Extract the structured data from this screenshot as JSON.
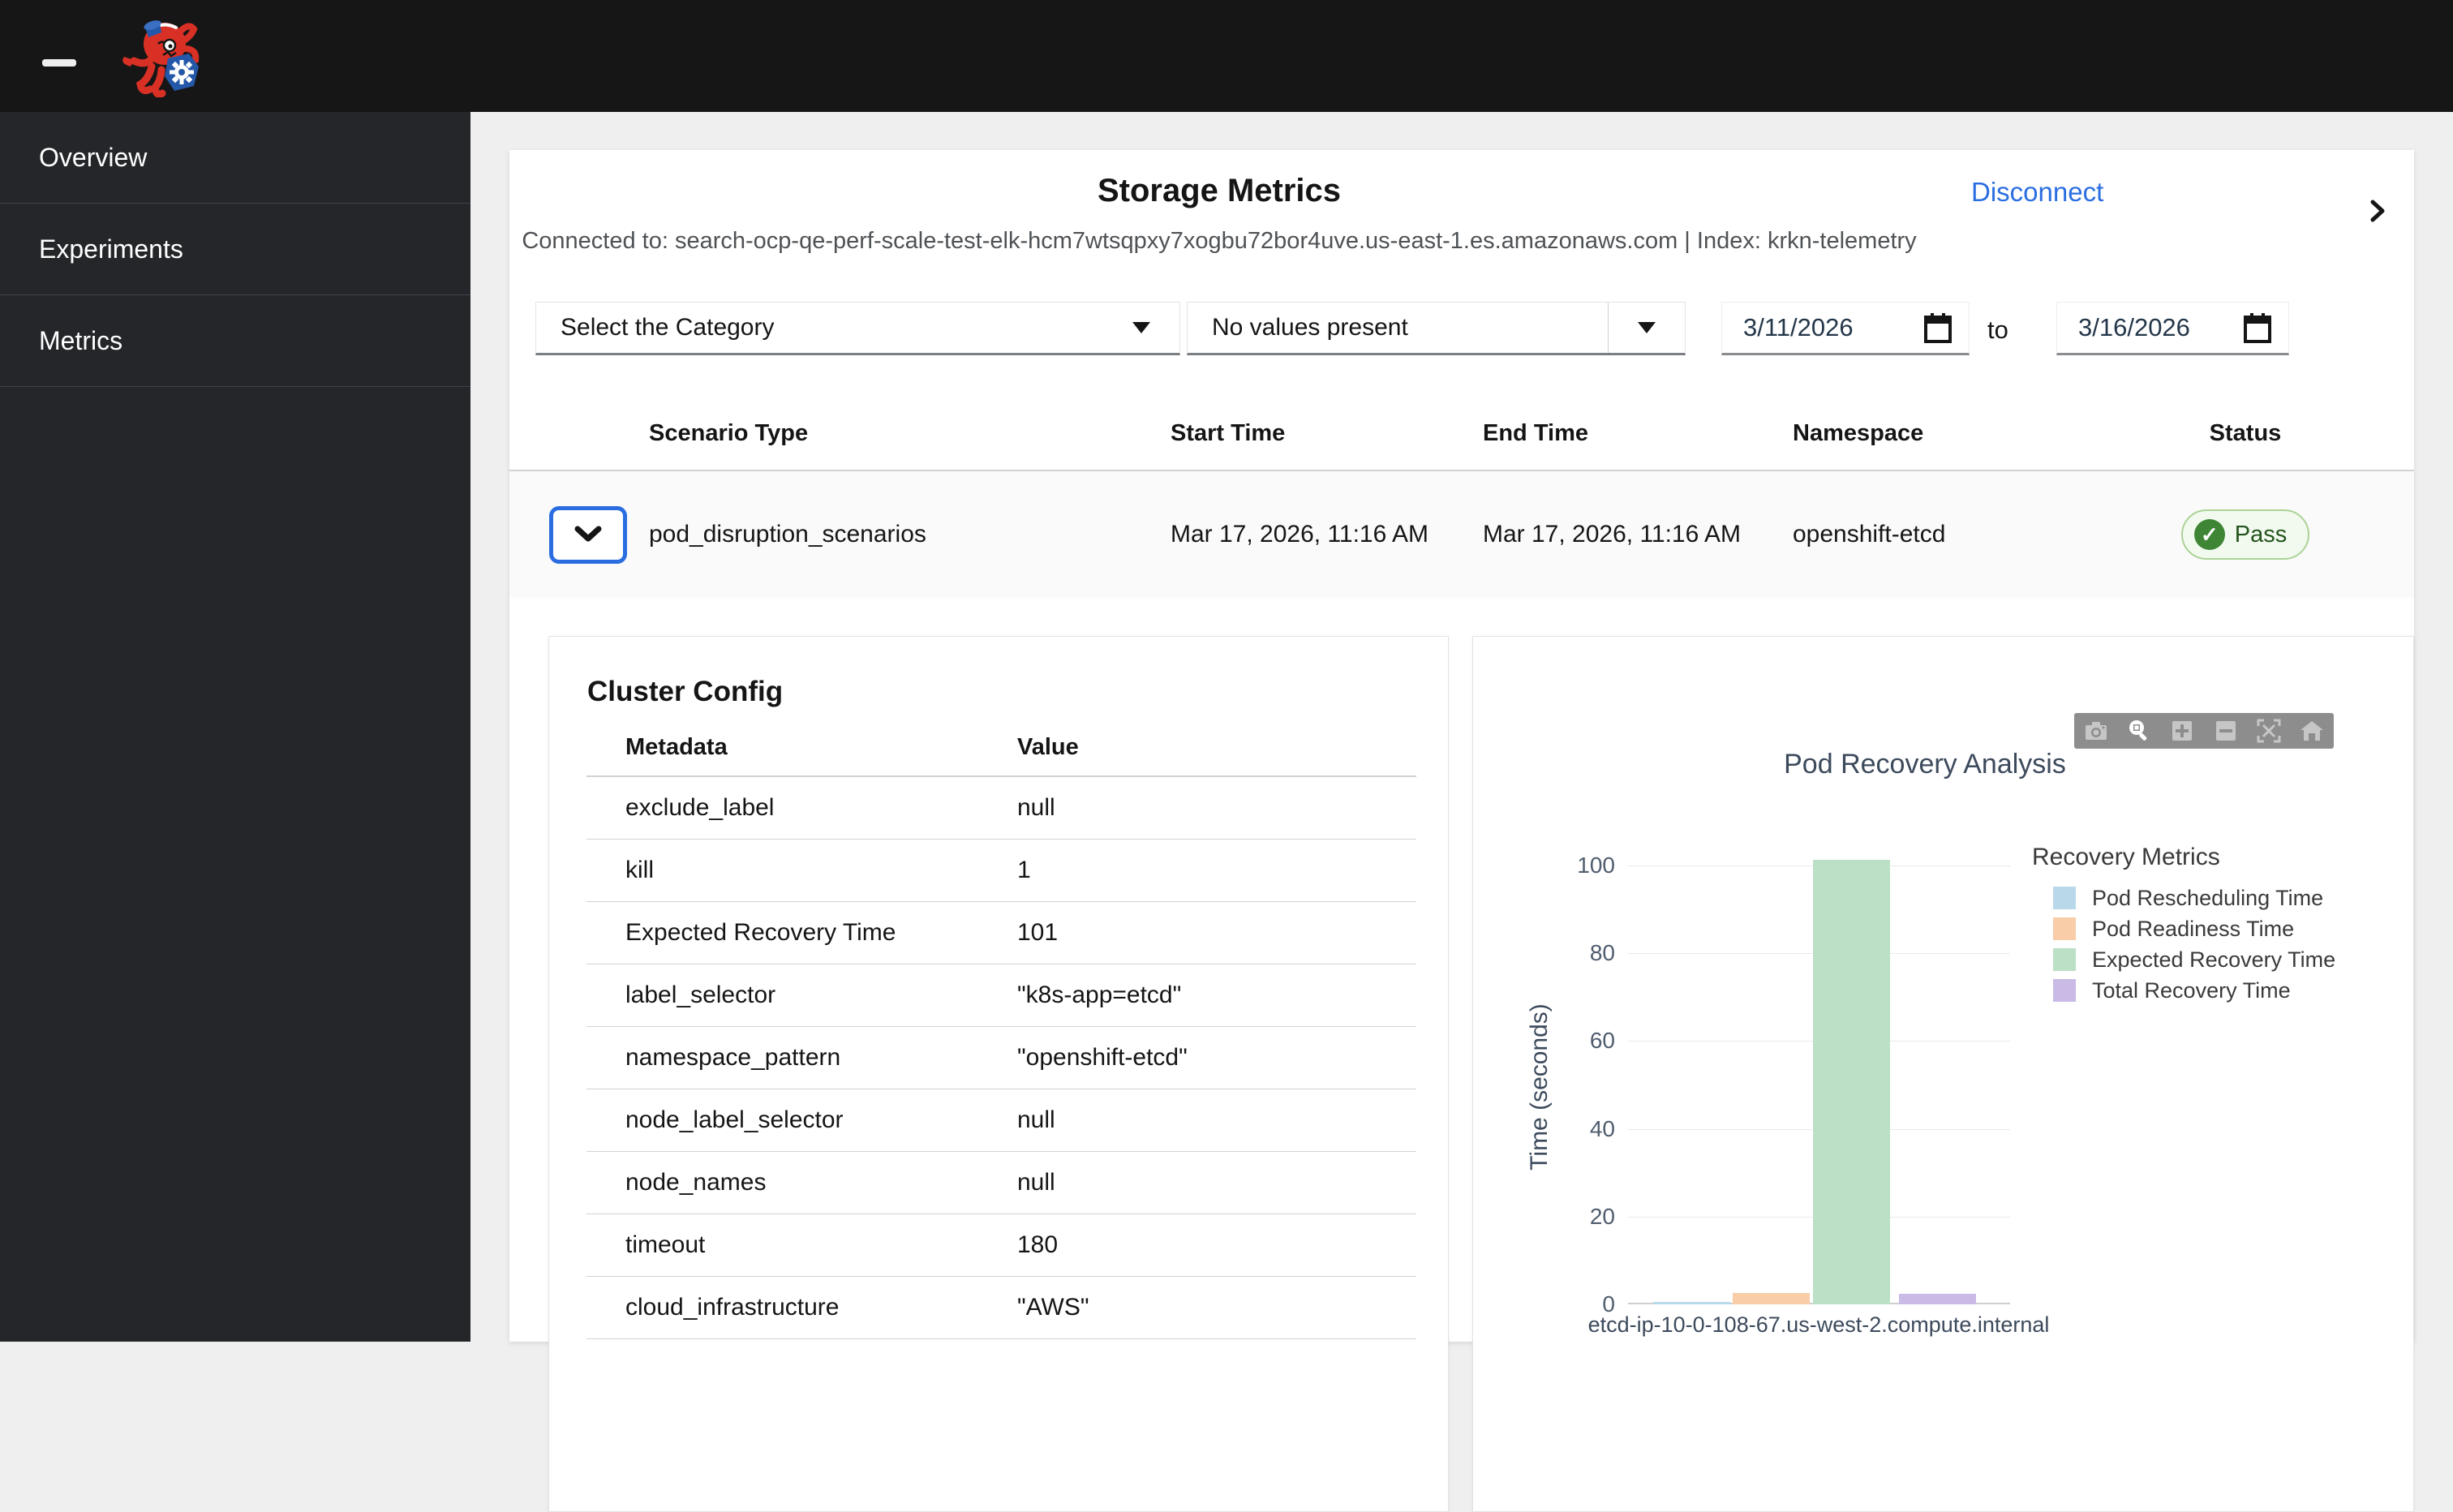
{
  "topbar": {
    "logo_name": "krkn-chaos-logo"
  },
  "sidebar": {
    "items": [
      {
        "label": "Overview"
      },
      {
        "label": "Experiments"
      },
      {
        "label": "Metrics"
      }
    ]
  },
  "header": {
    "title": "Storage Metrics",
    "disconnect_label": "Disconnect",
    "connection": "Connected to: search-ocp-qe-perf-scale-test-elk-hcm7wtsqpxy7xogbu72bor4uve.us-east-1.es.amazonaws.com | Index: krkn-telemetry"
  },
  "filters": {
    "category_placeholder": "Select the Category",
    "values_placeholder": "No values present",
    "date_from": "3/11/2026",
    "range_separator": "to",
    "date_to": "3/16/2026"
  },
  "table": {
    "headers": [
      "Scenario Type",
      "Start Time",
      "End Time",
      "Namespace",
      "Status"
    ],
    "rows": [
      {
        "scenario_type": "pod_disruption_scenarios",
        "start_time": "Mar 17, 2026, 11:16 AM",
        "end_time": "Mar 17, 2026, 11:16 AM",
        "namespace": "openshift-etcd",
        "status": "Pass"
      }
    ]
  },
  "cluster_config": {
    "title": "Cluster Config",
    "columns": [
      "Metadata",
      "Value"
    ],
    "rows": [
      [
        "exclude_label",
        "null"
      ],
      [
        "kill",
        "1"
      ],
      [
        "Expected Recovery Time",
        "101"
      ],
      [
        "label_selector",
        "\"k8s-app=etcd\""
      ],
      [
        "namespace_pattern",
        "\"openshift-etcd\""
      ],
      [
        "node_label_selector",
        "null"
      ],
      [
        "node_names",
        "null"
      ],
      [
        "timeout",
        "180"
      ],
      [
        "cloud_infrastructure",
        "\"AWS\""
      ]
    ]
  },
  "chart_data": {
    "type": "bar",
    "title": "Pod Recovery Analysis",
    "categories": [
      "etcd-ip-10-0-108-67.us-west-2.compute.internal"
    ],
    "series": [
      {
        "name": "Pod Rescheduling Time",
        "color": "#b9d9eb",
        "values": [
          0.6
        ]
      },
      {
        "name": "Pod Readiness Time",
        "color": "#f8cda8",
        "values": [
          2.6
        ]
      },
      {
        "name": "Expected Recovery Time",
        "color": "#bce0c5",
        "values": [
          101.3
        ]
      },
      {
        "name": "Total Recovery Time",
        "color": "#c9bae6",
        "values": [
          2.4
        ]
      }
    ],
    "xlabel": "",
    "ylabel": "Time (seconds)",
    "ylim": [
      0,
      100
    ],
    "yticks": [
      0,
      20,
      40,
      60,
      80,
      100
    ],
    "grid": true,
    "legend_title": "Recovery Metrics",
    "legend_position": "right",
    "modebar_icons": [
      "camera-icon",
      "zoom-icon",
      "zoom-in-icon",
      "zoom-out-icon",
      "autoscale-icon",
      "reset-axes-icon"
    ]
  },
  "colors": {
    "accent_blue": "#2b6ee0",
    "pass_green": "#3e8635",
    "topbar_bg": "#161616",
    "sidebar_bg": "#24262a"
  }
}
